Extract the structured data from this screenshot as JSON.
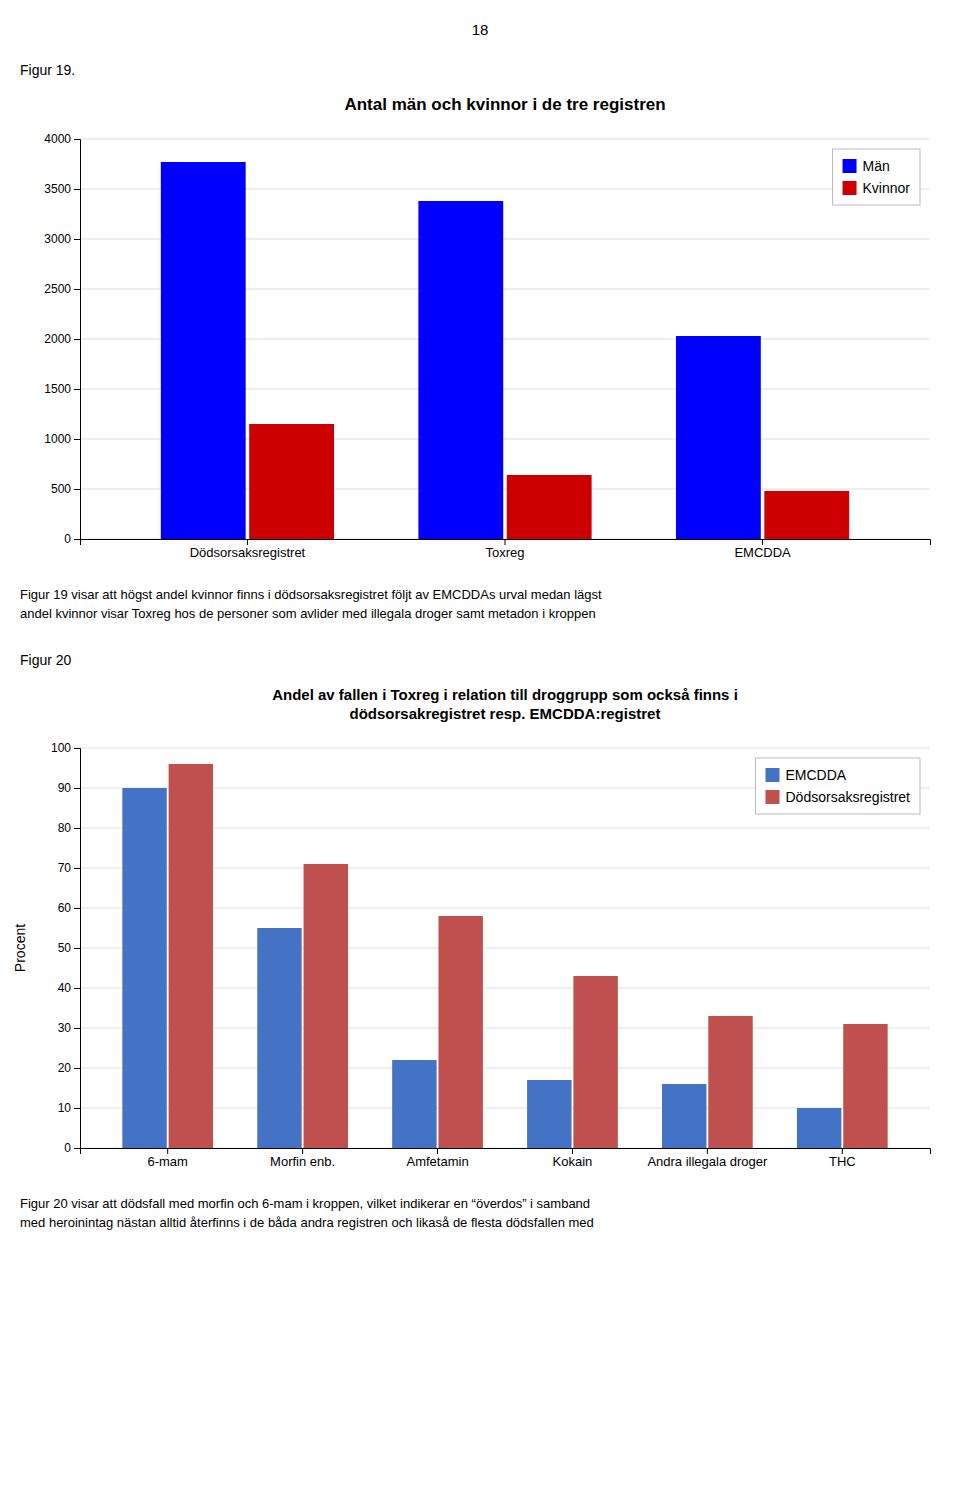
{
  "page_number": "18",
  "chart_data": [
    {
      "type": "bar",
      "figure_label": "Figur 19.",
      "title": "Antal män och kvinnor i de tre registren",
      "categories": [
        "Dödsorsaksregistret",
        "Toxreg",
        "EMCDDA"
      ],
      "series": [
        {
          "name": "Män",
          "color": "#0000FF",
          "values": [
            3770,
            3380,
            2030
          ]
        },
        {
          "name": "Kvinnor",
          "color": "#CC0000",
          "values": [
            1150,
            640,
            480
          ]
        }
      ],
      "ylim": [
        0,
        4000
      ],
      "yticks": [
        0,
        500,
        1000,
        1500,
        2000,
        2500,
        3000,
        3500,
        4000
      ],
      "grid": true,
      "legend": "upper right",
      "caption": [
        "Figur 19 visar att högst andel kvinnor finns i dödsorsaksregistret följt av EMCDDAs urval medan lägst",
        "andel kvinnor visar Toxreg hos de personer som avlider med illegala droger samt metadon i kroppen"
      ]
    },
    {
      "type": "bar",
      "figure_label": "Figur 20",
      "title": [
        "Andel av fallen i Toxreg i relation till droggrupp som också finns i",
        "dödsorsakregistret resp. EMCDDA:registret"
      ],
      "categories": [
        "6-mam",
        "Morfin enb.",
        "Amfetamin",
        "Kokain",
        "Andra illegala droger",
        "THC"
      ],
      "series": [
        {
          "name": "EMCDDA",
          "color": "#4472C4",
          "values": [
            90,
            55,
            22,
            17,
            16,
            10
          ]
        },
        {
          "name": "Dödsorsaksregistret",
          "color": "#C0504D",
          "values": [
            96,
            71,
            58,
            43,
            33,
            31
          ]
        }
      ],
      "ylabel": "Procent",
      "ylim": [
        0,
        100
      ],
      "yticks": [
        0,
        10,
        20,
        30,
        40,
        50,
        60,
        70,
        80,
        90,
        100
      ],
      "grid": true,
      "legend": "upper right",
      "caption": [
        "Figur 20 visar att dödsfall med morfin och 6-mam i kroppen, vilket indikerar en “överdos” i samband",
        "med heroinintag nästan alltid återfinns i de båda andra registren och likaså de flesta dödsfallen med"
      ]
    }
  ]
}
